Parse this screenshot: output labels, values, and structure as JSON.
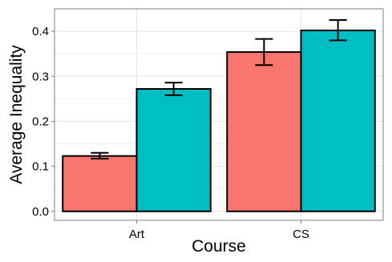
{
  "chart_data": {
    "type": "bar",
    "xlabel": "Course",
    "ylabel": "Average Inequality",
    "categories": [
      "Art",
      "CS"
    ],
    "ylim": [
      -0.02,
      0.45
    ],
    "yticks": [
      0.0,
      0.1,
      0.2,
      0.3,
      0.4
    ],
    "ytick_labels": [
      "0.0",
      "0.1",
      "0.2",
      "0.3",
      "0.4"
    ],
    "grid": true,
    "legend": "none",
    "error_bars": true,
    "series": [
      {
        "color": "#F8766D",
        "values": [
          0.123,
          0.354
        ],
        "error_low": [
          0.117,
          0.325
        ],
        "error_high": [
          0.13,
          0.383
        ]
      },
      {
        "color": "#00BFC4",
        "values": [
          0.272,
          0.402
        ],
        "error_low": [
          0.258,
          0.38
        ],
        "error_high": [
          0.286,
          0.425
        ]
      }
    ]
  }
}
